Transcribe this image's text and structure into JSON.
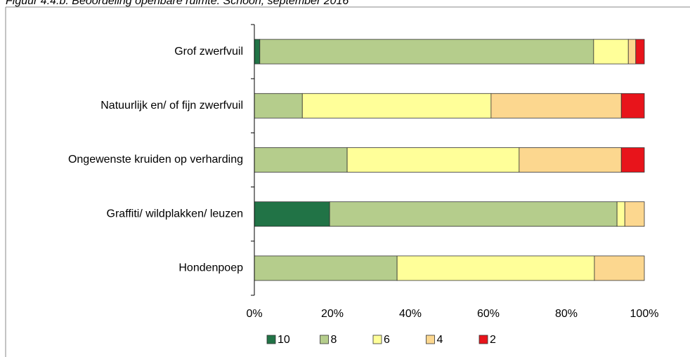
{
  "chart_data": {
    "type": "stacked-bar-horizontal",
    "title": "Figuur 4.4.b. Beoordeling openbare ruimte: Schoon, september 2016",
    "categories": [
      "Grof zwerfvuil",
      "Natuurlijk en/ of fijn zwerfvuil",
      "Ongewenste kruiden op verharding",
      "Graffiti/ wildplakken/ leuzen",
      "Hondenpoep"
    ],
    "series": [
      {
        "name": "10",
        "color": "#217346",
        "values": [
          1.4,
          0,
          0,
          19.3,
          0
        ]
      },
      {
        "name": "8",
        "color": "#b5cd8c",
        "values": [
          85.6,
          12.3,
          23.8,
          73.7,
          36.6
        ]
      },
      {
        "name": "6",
        "color": "#ffff99",
        "values": [
          8.9,
          48.4,
          44.1,
          2.0,
          50.6
        ]
      },
      {
        "name": "4",
        "color": "#fcd78f",
        "values": [
          1.9,
          33.4,
          26.2,
          5.0,
          12.8
        ]
      },
      {
        "name": "2",
        "color": "#e8141b",
        "values": [
          2.2,
          5.9,
          5.9,
          0,
          0
        ]
      }
    ],
    "xlim": [
      0,
      100
    ],
    "xticks": [
      {
        "value": 0,
        "label": "0%"
      },
      {
        "value": 20,
        "label": "20%"
      },
      {
        "value": 40,
        "label": "40%"
      },
      {
        "value": 60,
        "label": "60%"
      },
      {
        "value": 80,
        "label": "80%"
      },
      {
        "value": 100,
        "label": "100%"
      }
    ],
    "legend": "bottom"
  }
}
